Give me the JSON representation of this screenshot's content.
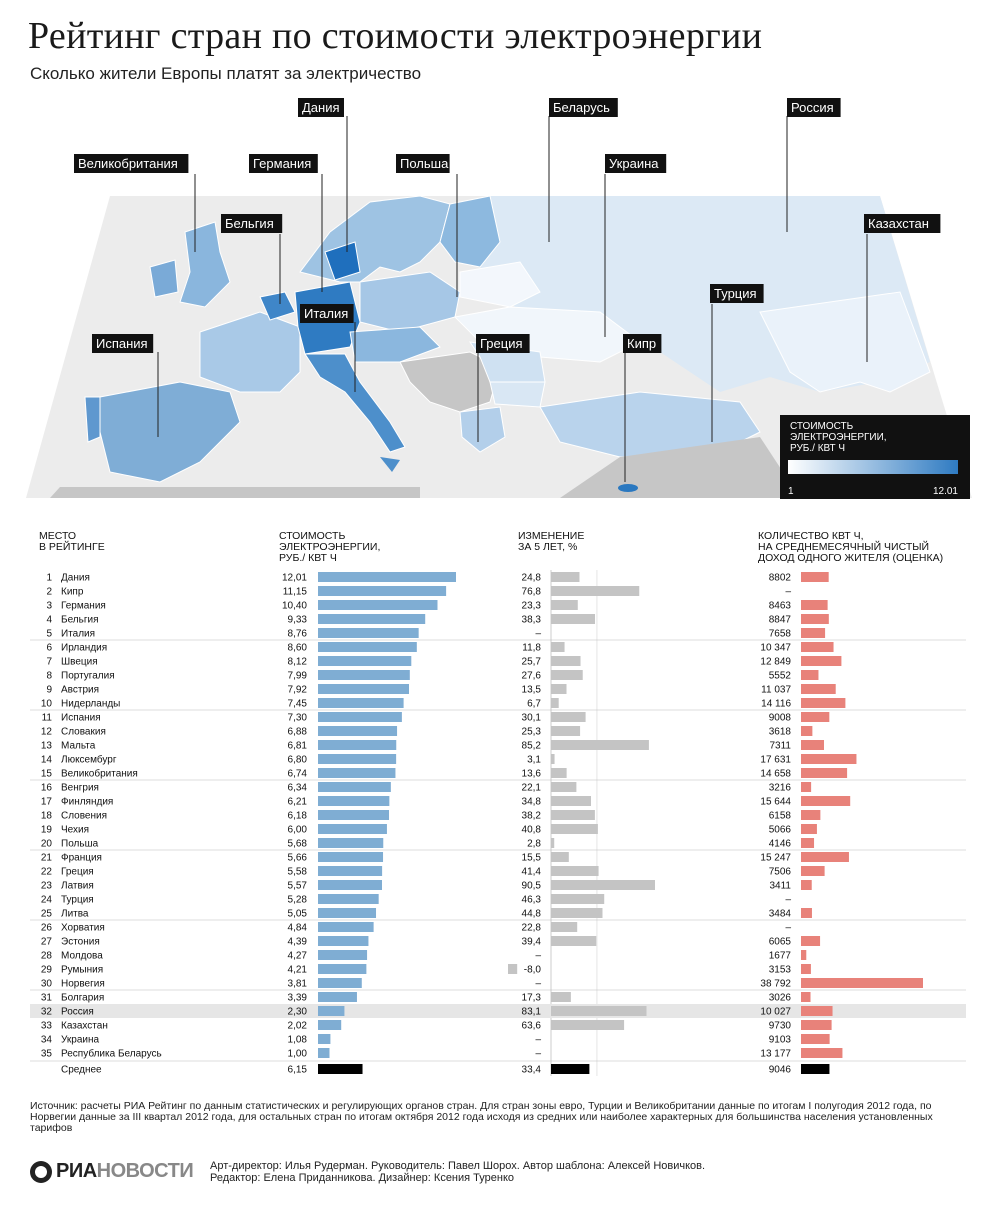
{
  "header": {
    "title": "Рейтинг стран по стоимости электроэнергии",
    "subtitle": "Сколько жители Европы платят за электричество"
  },
  "map": {
    "labels": [
      "Дания",
      "Беларусь",
      "Россия",
      "Великобритания",
      "Германия",
      "Польша",
      "Украина",
      "Бельгия",
      "Казахстан",
      "Турция",
      "Италия",
      "Испания",
      "Греция",
      "Кипр"
    ],
    "legend": {
      "title": "СТОИМОСТЬ\nЭЛЕКТРОЭНЕРГИИ,\nРУБ./ КВТ Ч",
      "min": "1",
      "max": "12.01"
    },
    "colors": {
      "low": "#eef4fb",
      "high": "#2f7bc2",
      "noData": "#c6c6c6",
      "sea": "#ececec",
      "legendBg": "#111111"
    }
  },
  "table": {
    "headers": {
      "rank": "МЕСТО\nВ РЕЙТИНГЕ",
      "cost": "СТОИМОСТЬ\nЭЛЕКТРОЭНЕРГИИ,\nРУБ./ КВТ Ч",
      "change": "ИЗМЕНЕНИЕ\nЗА 5 ЛЕТ, %",
      "income": "КОЛИЧЕСТВО КВТ Ч,\nНА СРЕДНЕМЕСЯЧНЫЙ ЧИСТЫЙ\nДОХОД ОДНОГО ЖИТЕЛЯ (ОЦЕНКА)"
    }
  },
  "chart_data": {
    "type": "bar",
    "title": "Рейтинг стран по стоимости электроэнергии",
    "categories": [
      "Дания",
      "Кипр",
      "Германия",
      "Бельгия",
      "Италия",
      "Ирландия",
      "Швеция",
      "Португалия",
      "Австрия",
      "Нидерланды",
      "Испания",
      "Словакия",
      "Мальта",
      "Люксембург",
      "Великобритания",
      "Венгрия",
      "Финляндия",
      "Словения",
      "Чехия",
      "Польша",
      "Франция",
      "Греция",
      "Латвия",
      "Турция",
      "Литва",
      "Хорватия",
      "Эстония",
      "Молдова",
      "Румыния",
      "Норвегия",
      "Болгария",
      "Россия",
      "Казахстан",
      "Украина",
      "Республика Беларусь"
    ],
    "series": [
      {
        "name": "СТОИМОСТЬ ЭЛЕКТРОЭНЕРГИИ, РУБ./ КВТ Ч",
        "values": [
          12.01,
          11.15,
          10.4,
          9.33,
          8.76,
          8.6,
          8.12,
          7.99,
          7.92,
          7.45,
          7.3,
          6.88,
          6.81,
          6.8,
          6.74,
          6.34,
          6.21,
          6.18,
          6.0,
          5.68,
          5.66,
          5.58,
          5.57,
          5.28,
          5.05,
          4.84,
          4.39,
          4.27,
          4.21,
          3.81,
          3.39,
          2.3,
          2.02,
          1.08,
          1.0
        ],
        "labels": [
          "12,01",
          "11,15",
          "10,40",
          "9,33",
          "8,76",
          "8,60",
          "8,12",
          "7,99",
          "7,92",
          "7,45",
          "7,30",
          "6,88",
          "6,81",
          "6,80",
          "6,74",
          "6,34",
          "6,21",
          "6,18",
          "6,00",
          "5,68",
          "5,66",
          "5,58",
          "5,57",
          "5,28",
          "5,05",
          "4,84",
          "4,39",
          "4,27",
          "4,21",
          "3,81",
          "3,39",
          "2,30",
          "2,02",
          "1,08",
          "1,00"
        ]
      },
      {
        "name": "ИЗМЕНЕНИЕ ЗА 5 ЛЕТ, %",
        "values": [
          24.8,
          76.8,
          23.3,
          38.3,
          null,
          11.8,
          25.7,
          27.6,
          13.5,
          6.7,
          30.1,
          25.3,
          85.2,
          3.1,
          13.6,
          22.1,
          34.8,
          38.2,
          40.8,
          2.8,
          15.5,
          41.4,
          90.5,
          46.3,
          44.8,
          22.8,
          39.4,
          null,
          -8.0,
          null,
          17.3,
          83.1,
          63.6,
          null,
          null
        ],
        "labels": [
          "24,8",
          "76,8",
          "23,3",
          "38,3",
          "–",
          "11,8",
          "25,7",
          "27,6",
          "13,5",
          "6,7",
          "30,1",
          "25,3",
          "85,2",
          "3,1",
          "13,6",
          "22,1",
          "34,8",
          "38,2",
          "40,8",
          "2,8",
          "15,5",
          "41,4",
          "90,5",
          "46,3",
          "44,8",
          "22,8",
          "39,4",
          "–",
          "-8,0",
          "–",
          "17,3",
          "83,1",
          "63,6",
          "–",
          "–"
        ]
      },
      {
        "name": "КОЛИЧЕСТВО КВТ Ч, НА СРЕДНЕМЕСЯЧНЫЙ ЧИСТЫЙ ДОХОД ОДНОГО ЖИТЕЛЯ (ОЦЕНКА)",
        "values": [
          8802,
          null,
          8463,
          8847,
          7658,
          10347,
          12849,
          5552,
          11037,
          14116,
          9008,
          3618,
          7311,
          17631,
          14658,
          3216,
          15644,
          6158,
          5066,
          4146,
          15247,
          7506,
          3411,
          null,
          3484,
          null,
          6065,
          1677,
          3153,
          38792,
          3026,
          10027,
          9730,
          9103,
          13177
        ],
        "labels": [
          "8802",
          "–",
          "8463",
          "8847",
          "7658",
          "10 347",
          "12 849",
          "5552",
          "11 037",
          "14 116",
          "9008",
          "3618",
          "7311",
          "17 631",
          "14 658",
          "3216",
          "15 644",
          "6158",
          "5066",
          "4146",
          "15 247",
          "7506",
          "3411",
          "–",
          "3484",
          "–",
          "6065",
          "1677",
          "3153",
          "38 792",
          "3026",
          "10 027",
          "9730",
          "9103",
          "13 177"
        ]
      }
    ],
    "average": {
      "label": "Среднее",
      "cost": 6.15,
      "cost_label": "6,15",
      "change": 33.4,
      "change_label": "33,4",
      "income": 9046,
      "income_label": "9046"
    },
    "highlighted": "Россия",
    "colors": {
      "cost": "#7fadd3",
      "change": "#c4c4c4",
      "income": "#e8827a",
      "average": "#000000",
      "highlightRow": "#e6e6e6"
    }
  },
  "footer": {
    "source": "Источник: расчеты РИА Рейтинг по данным статистических и регулирующих органов стран. Для стран зоны евро, Турции и Великобритании данные по итогам I полугодия 2012 года, по Норвегии данные за III квартал 2012 года, для остальных стран по итогам октября 2012 года исходя из средних или наиболее характерных для большинства населения установленных тарифов",
    "logo_a": "РИА",
    "logo_b": "НОВОСТИ",
    "credits_line1": "Арт-директор: Илья Рудерман. Руководитель: Павел Шорох. Автор шаблона: Алексей Новичков.",
    "credits_line2": "Редактор: Елена Приданникова. Дизайнер: Ксения Туренко"
  }
}
